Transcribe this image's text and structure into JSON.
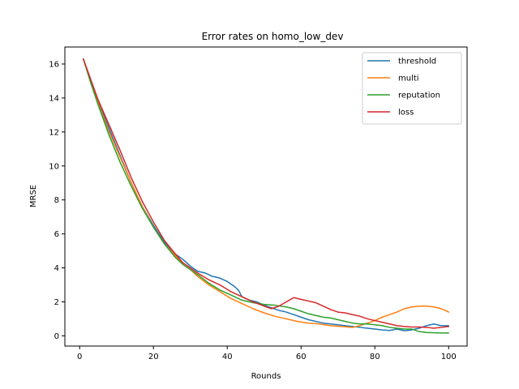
{
  "chart_data": {
    "type": "line",
    "title": "Error rates on homo_low_dev",
    "xlabel": "Rounds",
    "ylabel": "MRSE",
    "xlim": [
      -4,
      105
    ],
    "ylim": [
      -0.6,
      17
    ],
    "xticks": [
      0,
      20,
      40,
      60,
      80,
      100
    ],
    "yticks": [
      0,
      2,
      4,
      6,
      8,
      10,
      12,
      14,
      16
    ],
    "grid": false,
    "legend_position": "top-right",
    "series": [
      {
        "name": "threshold",
        "color": "#1f77b4",
        "points": [
          [
            1,
            16.3
          ],
          [
            3,
            15.0
          ],
          [
            5,
            13.8
          ],
          [
            8,
            12.2
          ],
          [
            11,
            10.6
          ],
          [
            14,
            9.0
          ],
          [
            17,
            7.6
          ],
          [
            20,
            6.5
          ],
          [
            23,
            5.5
          ],
          [
            26,
            4.8
          ],
          [
            28,
            4.5
          ],
          [
            30,
            4.1
          ],
          [
            32,
            3.8
          ],
          [
            34,
            3.7
          ],
          [
            36,
            3.5
          ],
          [
            38,
            3.4
          ],
          [
            40,
            3.2
          ],
          [
            42,
            2.9
          ],
          [
            43,
            2.7
          ],
          [
            44,
            2.3
          ],
          [
            46,
            2.1
          ],
          [
            48,
            2.0
          ],
          [
            50,
            1.8
          ],
          [
            52,
            1.65
          ],
          [
            54,
            1.5
          ],
          [
            56,
            1.4
          ],
          [
            58,
            1.25
          ],
          [
            60,
            1.1
          ],
          [
            62,
            0.95
          ],
          [
            64,
            0.85
          ],
          [
            66,
            0.75
          ],
          [
            68,
            0.7
          ],
          [
            70,
            0.65
          ],
          [
            72,
            0.6
          ],
          [
            74,
            0.55
          ],
          [
            76,
            0.5
          ],
          [
            78,
            0.45
          ],
          [
            80,
            0.4
          ],
          [
            82,
            0.35
          ],
          [
            84,
            0.32
          ],
          [
            86,
            0.4
          ],
          [
            88,
            0.3
          ],
          [
            90,
            0.35
          ],
          [
            92,
            0.45
          ],
          [
            94,
            0.6
          ],
          [
            96,
            0.7
          ],
          [
            98,
            0.6
          ],
          [
            100,
            0.6
          ]
        ]
      },
      {
        "name": "multi",
        "color": "#ff7f0e",
        "points": [
          [
            1,
            16.3
          ],
          [
            3,
            15.0
          ],
          [
            5,
            13.7
          ],
          [
            8,
            12.0
          ],
          [
            11,
            10.5
          ],
          [
            14,
            9.0
          ],
          [
            17,
            7.6
          ],
          [
            20,
            6.4
          ],
          [
            23,
            5.4
          ],
          [
            26,
            4.7
          ],
          [
            28,
            4.2
          ],
          [
            30,
            3.9
          ],
          [
            32,
            3.5
          ],
          [
            35,
            3.0
          ],
          [
            38,
            2.6
          ],
          [
            41,
            2.2
          ],
          [
            44,
            1.9
          ],
          [
            47,
            1.6
          ],
          [
            50,
            1.35
          ],
          [
            53,
            1.15
          ],
          [
            56,
            1.0
          ],
          [
            59,
            0.85
          ],
          [
            62,
            0.75
          ],
          [
            65,
            0.7
          ],
          [
            68,
            0.6
          ],
          [
            71,
            0.55
          ],
          [
            74,
            0.5
          ],
          [
            76,
            0.6
          ],
          [
            78,
            0.75
          ],
          [
            80,
            0.9
          ],
          [
            82,
            1.1
          ],
          [
            84,
            1.25
          ],
          [
            86,
            1.4
          ],
          [
            88,
            1.6
          ],
          [
            90,
            1.7
          ],
          [
            92,
            1.75
          ],
          [
            94,
            1.75
          ],
          [
            96,
            1.7
          ],
          [
            98,
            1.6
          ],
          [
            100,
            1.4
          ]
        ]
      },
      {
        "name": "reputation",
        "color": "#2ca02c",
        "points": [
          [
            1,
            16.3
          ],
          [
            3,
            14.9
          ],
          [
            5,
            13.6
          ],
          [
            8,
            11.8
          ],
          [
            11,
            10.2
          ],
          [
            14,
            8.8
          ],
          [
            17,
            7.5
          ],
          [
            20,
            6.4
          ],
          [
            23,
            5.4
          ],
          [
            26,
            4.6
          ],
          [
            28,
            4.2
          ],
          [
            30,
            3.9
          ],
          [
            32,
            3.6
          ],
          [
            35,
            3.1
          ],
          [
            38,
            2.7
          ],
          [
            41,
            2.4
          ],
          [
            44,
            2.1
          ],
          [
            47,
            1.95
          ],
          [
            50,
            1.85
          ],
          [
            53,
            1.8
          ],
          [
            56,
            1.7
          ],
          [
            58,
            1.6
          ],
          [
            60,
            1.45
          ],
          [
            62,
            1.3
          ],
          [
            64,
            1.2
          ],
          [
            66,
            1.1
          ],
          [
            68,
            1.05
          ],
          [
            70,
            0.95
          ],
          [
            72,
            0.85
          ],
          [
            74,
            0.75
          ],
          [
            76,
            0.7
          ],
          [
            78,
            0.7
          ],
          [
            80,
            0.65
          ],
          [
            82,
            0.6
          ],
          [
            84,
            0.5
          ],
          [
            86,
            0.45
          ],
          [
            88,
            0.4
          ],
          [
            90,
            0.4
          ],
          [
            92,
            0.25
          ],
          [
            94,
            0.2
          ],
          [
            96,
            0.18
          ],
          [
            98,
            0.17
          ],
          [
            100,
            0.17
          ]
        ]
      },
      {
        "name": "loss",
        "color": "#d62728",
        "points": [
          [
            1,
            16.3
          ],
          [
            3,
            15.1
          ],
          [
            5,
            13.9
          ],
          [
            8,
            12.4
          ],
          [
            11,
            10.9
          ],
          [
            14,
            9.3
          ],
          [
            17,
            7.9
          ],
          [
            20,
            6.7
          ],
          [
            23,
            5.6
          ],
          [
            26,
            4.8
          ],
          [
            28,
            4.3
          ],
          [
            30,
            4.0
          ],
          [
            32,
            3.7
          ],
          [
            35,
            3.3
          ],
          [
            38,
            3.0
          ],
          [
            41,
            2.6
          ],
          [
            44,
            2.3
          ],
          [
            47,
            2.0
          ],
          [
            50,
            1.75
          ],
          [
            52,
            1.6
          ],
          [
            54,
            1.75
          ],
          [
            56,
            2.0
          ],
          [
            58,
            2.25
          ],
          [
            60,
            2.15
          ],
          [
            62,
            2.05
          ],
          [
            64,
            1.95
          ],
          [
            66,
            1.75
          ],
          [
            68,
            1.55
          ],
          [
            70,
            1.4
          ],
          [
            72,
            1.35
          ],
          [
            74,
            1.25
          ],
          [
            76,
            1.15
          ],
          [
            78,
            1.0
          ],
          [
            80,
            0.9
          ],
          [
            82,
            0.8
          ],
          [
            84,
            0.7
          ],
          [
            86,
            0.6
          ],
          [
            88,
            0.55
          ],
          [
            90,
            0.52
          ],
          [
            92,
            0.52
          ],
          [
            94,
            0.5
          ],
          [
            96,
            0.45
          ],
          [
            98,
            0.5
          ],
          [
            100,
            0.55
          ]
        ]
      }
    ]
  }
}
